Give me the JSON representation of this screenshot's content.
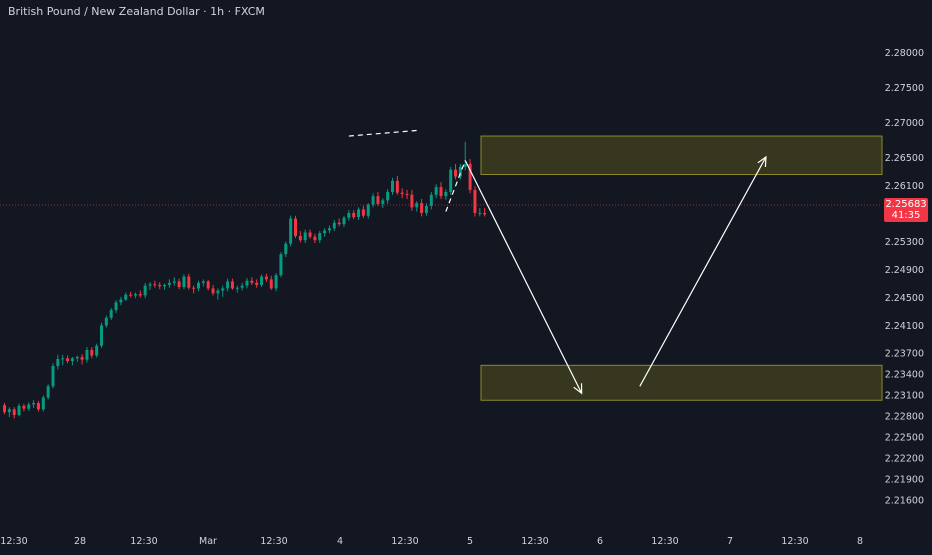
{
  "header": {
    "symbol_title": "British Pound / New Zealand Dollar",
    "separator1": " · ",
    "interval": "1h",
    "separator2": " · ",
    "source": "FXCM"
  },
  "last_price": {
    "value": "2.25683",
    "countdown": "41:35",
    "color": "#f23645"
  },
  "colors": {
    "background": "#131722",
    "up_candle": "#089981",
    "down_candle": "#f23645",
    "zone_fill": "#3d3d1d",
    "zone_border": "#8a8a2a",
    "arrow": "#ffffff",
    "axis_text": "#d1d4dc"
  },
  "chart_data": {
    "type": "candlestick",
    "title": "British Pound / New Zealand Dollar · 1h · FXCM",
    "y_axis_labels": [
      "2.28000",
      "2.27500",
      "2.27000",
      "2.26500",
      "2.26100",
      "2.25300",
      "2.24900",
      "2.24500",
      "2.24100",
      "2.23700",
      "2.23400",
      "2.23100",
      "2.22800",
      "2.22500",
      "2.22200",
      "2.21900",
      "2.21600"
    ],
    "x_axis_labels": [
      "12:30",
      "28",
      "12:30",
      "Mar",
      "12:30",
      "4",
      "12:30",
      "5",
      "12:30",
      "6",
      "12:30",
      "7",
      "12:30",
      "8"
    ],
    "ylim": [
      2.2145,
      2.2826
    ],
    "xlim": [
      0,
      143
    ],
    "candles_ohlc": [
      [
        2.2295,
        2.2298,
        2.2282,
        2.2285
      ],
      [
        2.2285,
        2.2292,
        2.2278,
        2.2289
      ],
      [
        2.2289,
        2.2292,
        2.2276,
        2.2281
      ],
      [
        2.2281,
        2.2297,
        2.2279,
        2.2294
      ],
      [
        2.2294,
        2.2297,
        2.2286,
        2.229
      ],
      [
        2.229,
        2.2299,
        2.2287,
        2.2296
      ],
      [
        2.2296,
        2.2302,
        2.2291,
        2.2298
      ],
      [
        2.2298,
        2.2301,
        2.2286,
        2.2289
      ],
      [
        2.2289,
        2.2309,
        2.2286,
        2.2306
      ],
      [
        2.2306,
        2.2325,
        2.2303,
        2.2322
      ],
      [
        2.2322,
        2.2355,
        2.2319,
        2.2351
      ],
      [
        2.2351,
        2.2367,
        2.2346,
        2.2361
      ],
      [
        2.2361,
        2.2367,
        2.2352,
        2.2362
      ],
      [
        2.2362,
        2.2366,
        2.2355,
        2.2358
      ],
      [
        2.2358,
        2.2364,
        2.2352,
        2.2362
      ],
      [
        2.2362,
        2.2366,
        2.2357,
        2.2364
      ],
      [
        2.2364,
        2.2368,
        2.2353,
        2.236
      ],
      [
        2.236,
        2.2378,
        2.2356,
        2.2374
      ],
      [
        2.2374,
        2.2378,
        2.2362,
        2.2366
      ],
      [
        2.2366,
        2.2383,
        2.2363,
        2.238
      ],
      [
        2.238,
        2.2413,
        2.2377,
        2.2409
      ],
      [
        2.2409,
        2.2423,
        2.2406,
        2.242
      ],
      [
        2.242,
        2.2434,
        2.2417,
        2.2431
      ],
      [
        2.2431,
        2.2445,
        2.2427,
        2.2442
      ],
      [
        2.2442,
        2.245,
        2.2438,
        2.2446
      ],
      [
        2.2446,
        2.2456,
        2.2444,
        2.2453
      ],
      [
        2.2453,
        2.2457,
        2.2449,
        2.2452
      ],
      [
        2.2452,
        2.2456,
        2.2448,
        2.2454
      ],
      [
        2.2454,
        2.2459,
        2.2449,
        2.2452
      ],
      [
        2.2452,
        2.247,
        2.2448,
        2.2466
      ],
      [
        2.2466,
        2.2471,
        2.246,
        2.2468
      ],
      [
        2.2468,
        2.2473,
        2.2463,
        2.2467
      ],
      [
        2.2467,
        2.2471,
        2.2461,
        2.2465
      ],
      [
        2.2465,
        2.2469,
        2.246,
        2.2467
      ],
      [
        2.2467,
        2.2475,
        2.2463,
        2.247
      ],
      [
        2.247,
        2.2478,
        2.2466,
        2.2472
      ],
      [
        2.2472,
        2.2476,
        2.2461,
        2.2464
      ],
      [
        2.2464,
        2.2482,
        2.2461,
        2.2479
      ],
      [
        2.2479,
        2.2483,
        2.246,
        2.2463
      ],
      [
        2.2463,
        2.2466,
        2.2455,
        2.2462
      ],
      [
        2.2462,
        2.2473,
        2.2458,
        2.247
      ],
      [
        2.247,
        2.2475,
        2.2465,
        2.2472
      ],
      [
        2.2472,
        2.2474,
        2.2459,
        2.2462
      ],
      [
        2.2462,
        2.2467,
        2.2452,
        2.2455
      ],
      [
        2.2455,
        2.2462,
        2.2446,
        2.2459
      ],
      [
        2.2459,
        2.2466,
        2.245,
        2.2462
      ],
      [
        2.2462,
        2.2476,
        2.2458,
        2.2472
      ],
      [
        2.2472,
        2.2476,
        2.246,
        2.2462
      ],
      [
        2.2462,
        2.2466,
        2.2456,
        2.2463
      ],
      [
        2.2463,
        2.247,
        2.2459,
        2.2466
      ],
      [
        2.2466,
        2.2477,
        2.2462,
        2.2473
      ],
      [
        2.2473,
        2.2478,
        2.2467,
        2.247
      ],
      [
        2.247,
        2.2475,
        2.2463,
        2.2467
      ],
      [
        2.2467,
        2.2482,
        2.2464,
        2.2479
      ],
      [
        2.2479,
        2.2483,
        2.2471,
        2.2475
      ],
      [
        2.2475,
        2.248,
        2.246,
        2.2462
      ],
      [
        2.2462,
        2.2484,
        2.2458,
        2.2481
      ],
      [
        2.2481,
        2.2514,
        2.2478,
        2.2511
      ],
      [
        2.2511,
        2.2529,
        2.2507,
        2.2526
      ],
      [
        2.2526,
        2.2566,
        2.2522,
        2.2562
      ],
      [
        2.2562,
        2.2566,
        2.2534,
        2.2537
      ],
      [
        2.2537,
        2.2544,
        2.2528,
        2.2531
      ],
      [
        2.2531,
        2.2546,
        2.2527,
        2.2542
      ],
      [
        2.2542,
        2.2546,
        2.2533,
        2.2536
      ],
      [
        2.2536,
        2.254,
        2.2527,
        2.2531
      ],
      [
        2.2531,
        2.2544,
        2.2527,
        2.2541
      ],
      [
        2.2541,
        2.2548,
        2.2536,
        2.2545
      ],
      [
        2.2545,
        2.2552,
        2.2541,
        2.2548
      ],
      [
        2.2548,
        2.256,
        2.2544,
        2.2556
      ],
      [
        2.2556,
        2.2562,
        2.2551,
        2.2554
      ],
      [
        2.2554,
        2.2566,
        2.255,
        2.2563
      ],
      [
        2.2563,
        2.2574,
        2.2559,
        2.257
      ],
      [
        2.257,
        2.2574,
        2.2561,
        2.2564
      ],
      [
        2.2564,
        2.2578,
        2.256,
        2.2575
      ],
      [
        2.2575,
        2.258,
        2.2563,
        2.2566
      ],
      [
        2.2566,
        2.2584,
        2.2562,
        2.2582
      ],
      [
        2.2582,
        2.2598,
        2.2578,
        2.2594
      ],
      [
        2.2594,
        2.26,
        2.258,
        2.2583
      ],
      [
        2.2583,
        2.2591,
        2.2577,
        2.2588
      ],
      [
        2.2588,
        2.2604,
        2.2583,
        2.26
      ],
      [
        2.26,
        2.262,
        2.2596,
        2.2616
      ],
      [
        2.2616,
        2.2623,
        2.2596,
        2.2599
      ],
      [
        2.2599,
        2.2605,
        2.2591,
        2.2597
      ],
      [
        2.2597,
        2.2603,
        2.259,
        2.2596
      ],
      [
        2.2596,
        2.2603,
        2.2573,
        2.2578
      ],
      [
        2.2578,
        2.2587,
        2.2572,
        2.2584
      ],
      [
        2.2584,
        2.259,
        2.2565,
        2.257
      ],
      [
        2.257,
        2.2584,
        2.2566,
        2.258
      ],
      [
        2.258,
        2.26,
        2.2575,
        2.2596
      ],
      [
        2.2596,
        2.2611,
        2.2591,
        2.2607
      ],
      [
        2.2607,
        2.2614,
        2.259,
        2.2594
      ],
      [
        2.2594,
        2.2604,
        2.2589,
        2.26
      ],
      [
        2.26,
        2.2636,
        2.2596,
        2.2632
      ],
      [
        2.2632,
        2.264,
        2.2618,
        2.2622
      ],
      [
        2.2622,
        2.264,
        2.2618,
        2.2636
      ],
      [
        2.2636,
        2.2672,
        2.2631,
        2.264
      ],
      [
        2.264,
        2.2647,
        2.2598,
        2.2603
      ],
      [
        2.2603,
        2.2608,
        2.2565,
        2.257
      ],
      [
        2.257,
        2.2577,
        2.2565,
        2.257
      ],
      [
        2.257,
        2.2577,
        2.2565,
        2.2568
      ]
    ]
  },
  "drawings": {
    "zones": [
      {
        "name": "resistance-zone",
        "top": 2.268,
        "bottom": 2.2625
      },
      {
        "name": "support-zone",
        "top": 2.2352,
        "bottom": 2.2302
      }
    ],
    "dashed_line_highs": [
      [
        71,
        2.268
      ],
      [
        85,
        2.2688
      ]
    ],
    "projection_path": [
      [
        91,
        2.2572
      ],
      [
        95,
        2.2645
      ],
      [
        119,
        2.2312
      ],
      [
        131,
        2.2322
      ],
      [
        157,
        2.265
      ]
    ]
  }
}
